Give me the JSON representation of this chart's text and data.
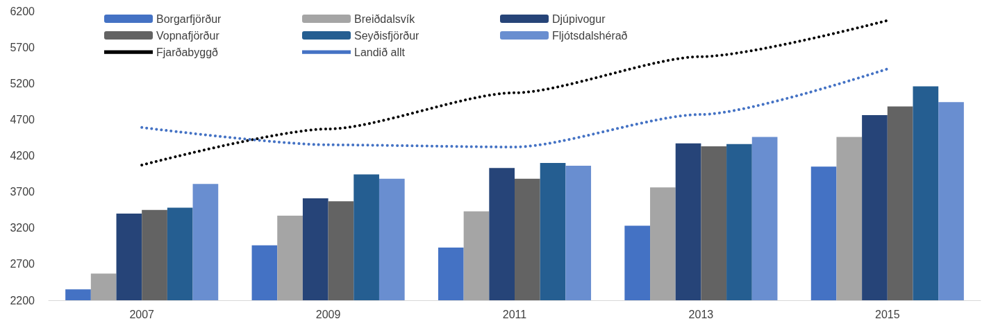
{
  "chart_data": {
    "type": "bar",
    "categories": [
      "2007",
      "2009",
      "2011",
      "2013",
      "2015"
    ],
    "series": [
      {
        "name": "Borgarfjörður",
        "color": "#4472c4",
        "values": [
          2350,
          2960,
          2930,
          3230,
          4050
        ]
      },
      {
        "name": "Breiðdalsvík",
        "color": "#a5a5a5",
        "values": [
          2570,
          3370,
          3430,
          3760,
          4460
        ]
      },
      {
        "name": "Djúpivogur",
        "color": "#264478",
        "values": [
          3400,
          3610,
          4030,
          4370,
          4760
        ]
      },
      {
        "name": "Vopnafjörður",
        "color": "#636363",
        "values": [
          3450,
          3570,
          3880,
          4330,
          4880
        ]
      },
      {
        "name": "Seyðisfjörður",
        "color": "#255e91",
        "values": [
          3480,
          3940,
          4100,
          4360,
          5160
        ]
      },
      {
        "name": "Fljótsdalshérað",
        "color": "#698ed0",
        "values": [
          3810,
          3880,
          4060,
          4460,
          4940
        ]
      },
      {
        "name": "Fjarðabyggð",
        "type": "line",
        "line_style": "dotted",
        "color": "#000000",
        "values": [
          4070,
          4570,
          5070,
          5570,
          6070
        ]
      },
      {
        "name": "Landið allt",
        "type": "line",
        "line_style": "dotted",
        "color": "#4472c4",
        "values": [
          4590,
          4350,
          4320,
          4770,
          5400
        ]
      }
    ],
    "ylim": [
      2200,
      6200
    ],
    "yticks": [
      2200,
      2700,
      3200,
      3700,
      4200,
      4700,
      5200,
      5700,
      6200
    ],
    "grid": false,
    "legend": "top",
    "marker": "none"
  }
}
